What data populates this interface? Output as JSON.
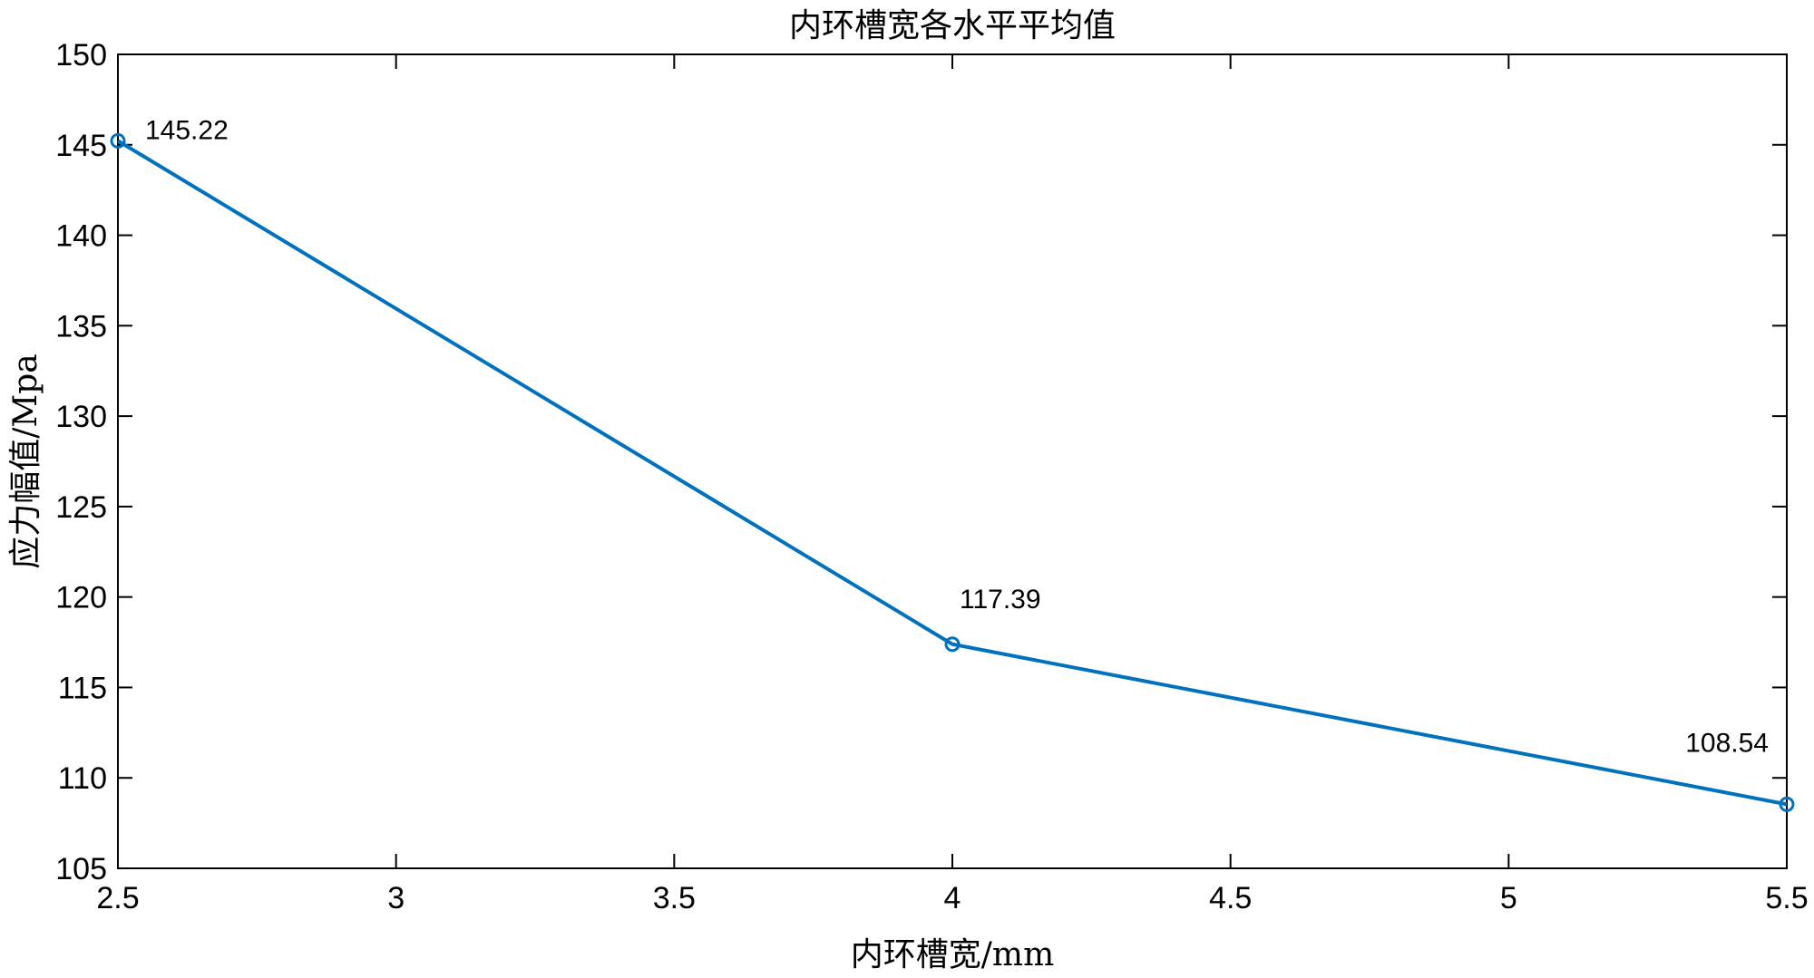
{
  "chart_data": {
    "type": "line",
    "title": "内环槽宽各水平平均值",
    "xlabel": "内环槽宽/mm",
    "ylabel": "应力幅值/Mpa",
    "x": [
      2.5,
      4,
      5.5
    ],
    "series": [
      {
        "values": [
          145.22,
          117.39,
          108.54
        ],
        "labels": [
          "145.22",
          "117.39",
          "108.54"
        ]
      }
    ],
    "xlim": [
      2.5,
      5.5
    ],
    "ylim": [
      105,
      150
    ],
    "xticks": [
      "2.5",
      "3",
      "3.5",
      "4",
      "4.5",
      "5",
      "5.5"
    ],
    "yticks": [
      "105",
      "110",
      "115",
      "120",
      "125",
      "130",
      "135",
      "140",
      "145",
      "150"
    ],
    "grid": false,
    "legend": "none",
    "line_color": "#0072BD"
  }
}
